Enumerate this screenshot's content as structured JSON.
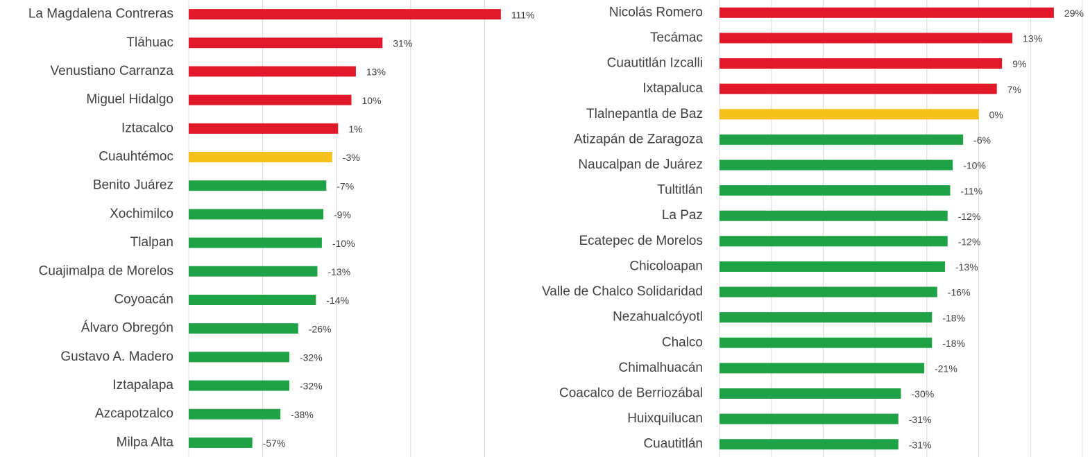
{
  "chart_data": [
    {
      "type": "barh",
      "categories": [
        "La Magdalena Contreras",
        "Tláhuac",
        "Venustiano Carranza",
        "Miguel Hidalgo",
        "Iztacalco",
        "Cuauhtémoc",
        "Benito Juárez",
        "Xochimilco",
        "Tlalpan",
        "Cuajimalpa de Morelos",
        "Coyoacán",
        "Álvaro Obregón",
        "Gustavo A. Madero",
        "Iztapalapa",
        "Azcapotzalco",
        "Milpa Alta"
      ],
      "values": [
        111,
        31,
        13,
        10,
        1,
        -3,
        -7,
        -9,
        -10,
        -13,
        -14,
        -26,
        -32,
        -32,
        -38,
        -57
      ],
      "value_labels": [
        "111%",
        "31%",
        "13%",
        "10%",
        "1%",
        "-3%",
        "-7%",
        "-9%",
        "-10%",
        "-13%",
        "-14%",
        "-26%",
        "-32%",
        "-32%",
        "-38%",
        "-57%"
      ],
      "colors": [
        "#e0182a",
        "#e0182a",
        "#e0182a",
        "#e0182a",
        "#e0182a",
        "#f5c01c",
        "#1fa146",
        "#1fa146",
        "#1fa146",
        "#1fa146",
        "#1fa146",
        "#1fa146",
        "#1fa146",
        "#1fa146",
        "#1fa146",
        "#1fa146"
      ],
      "xlim": [
        -100,
        120
      ],
      "xticks": [
        -100,
        -50,
        0,
        50,
        100
      ],
      "grid": true
    },
    {
      "type": "barh",
      "categories": [
        "Nicolás Romero",
        "Tecámac",
        "Cuautitlán Izcalli",
        "Ixtapaluca",
        "Tlalnepantla de Baz",
        "Atizapán de Zaragoza",
        "Naucalpan de Juárez",
        "Tultitlán",
        "La Paz",
        "Ecatepec de Morelos",
        "Chicoloapan",
        "Valle de Chalco Solidaridad",
        "Nezahualcóyotl",
        "Chalco",
        "Chimalhuacán",
        "Coacalco de Berriozábal",
        "Huixquilucan",
        "Cuautitlán"
      ],
      "values": [
        29,
        13,
        9,
        7,
        0,
        -6,
        -10,
        -11,
        -12,
        -12,
        -13,
        -16,
        -18,
        -18,
        -21,
        -30,
        -31,
        -31
      ],
      "value_labels": [
        "29%",
        "13%",
        "9%",
        "7%",
        "0%",
        "-6%",
        "-10%",
        "-11%",
        "-12%",
        "-12%",
        "-13%",
        "-16%",
        "-18%",
        "-18%",
        "-21%",
        "-30%",
        "-31%",
        "-31%"
      ],
      "colors": [
        "#e0182a",
        "#e0182a",
        "#e0182a",
        "#e0182a",
        "#f5c01c",
        "#1fa146",
        "#1fa146",
        "#1fa146",
        "#1fa146",
        "#1fa146",
        "#1fa146",
        "#1fa146",
        "#1fa146",
        "#1fa146",
        "#1fa146",
        "#1fa146",
        "#1fa146",
        "#1fa146"
      ],
      "xlim": [
        -100,
        40
      ],
      "xticks": [
        -100,
        -80,
        -60,
        -40,
        -20,
        0,
        20,
        40
      ],
      "grid": true
    }
  ]
}
